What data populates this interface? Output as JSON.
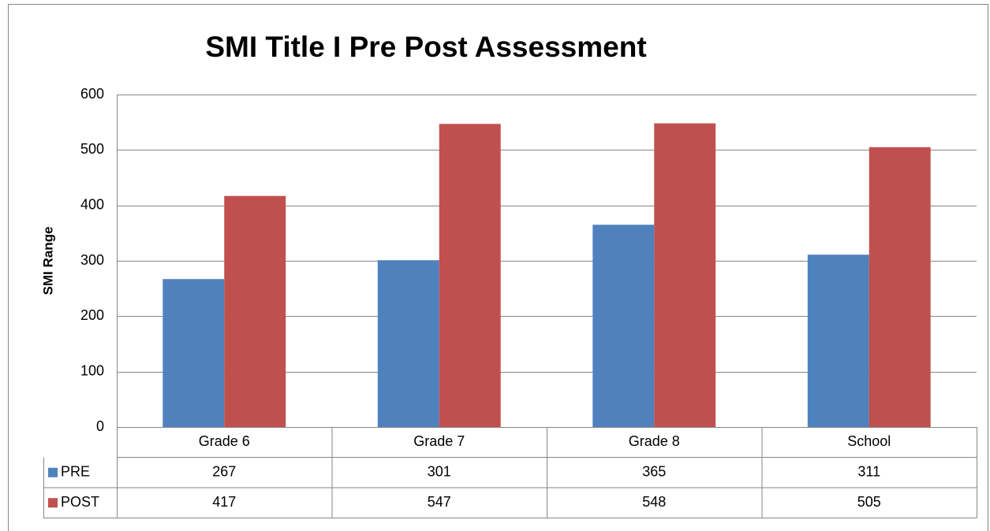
{
  "chart_data": {
    "type": "bar",
    "title": "SMI Title I Pre Post Assessment",
    "y_label": "SMI Range",
    "categories": [
      "Grade 6",
      "Grade 7",
      "Grade 8",
      "School"
    ],
    "series": [
      {
        "name": "PRE",
        "color": "#4f81bd",
        "values": [
          267,
          301,
          365,
          311
        ]
      },
      {
        "name": "POST",
        "color": "#c0504d",
        "values": [
          417,
          547,
          548,
          505
        ]
      }
    ],
    "ylim": [
      0,
      600
    ],
    "yticks": [
      0,
      100,
      200,
      300,
      400,
      500,
      600
    ],
    "grid": true,
    "data_table": true
  }
}
